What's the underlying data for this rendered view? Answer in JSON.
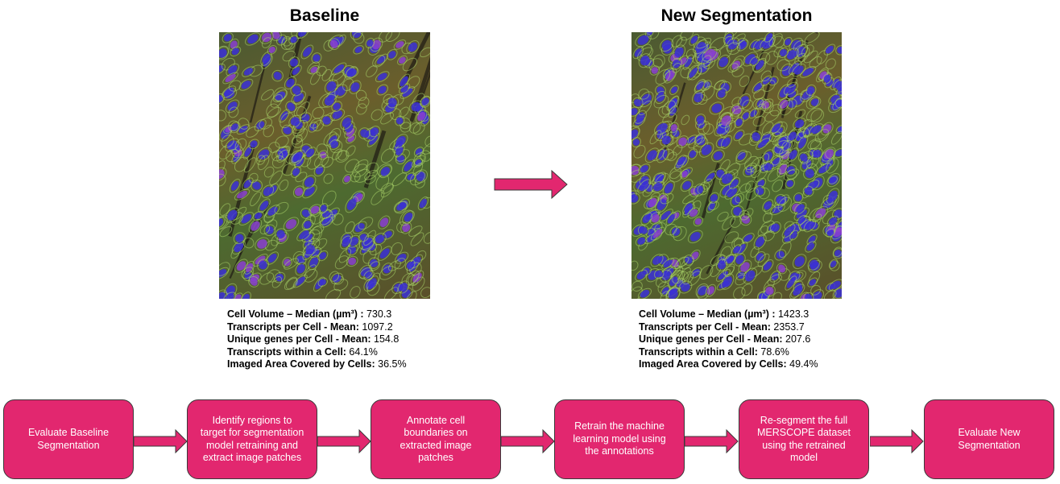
{
  "panels": {
    "baseline": {
      "title": "Baseline",
      "image_icon": "microscopy-image",
      "metrics": [
        {
          "label": "Cell Volume – Median (µm³) :",
          "value": "730.3"
        },
        {
          "label": "Transcripts per Cell - Mean:",
          "value": "1097.2"
        },
        {
          "label": "Unique genes per Cell - Mean:",
          "value": "154.8"
        },
        {
          "label": "Transcripts within a Cell:",
          "value": "64.1%"
        },
        {
          "label": "Imaged Area Covered by Cells:",
          "value": "36.5%"
        }
      ]
    },
    "new": {
      "title": "New Segmentation",
      "image_icon": "microscopy-image",
      "metrics": [
        {
          "label": "Cell Volume – Median (µm³) :",
          "value": "1423.3"
        },
        {
          "label": "Transcripts per Cell - Mean:",
          "value": "2353.7"
        },
        {
          "label": "Unique genes per Cell - Mean:",
          "value": "207.6"
        },
        {
          "label": "Transcripts within a Cell:",
          "value": "78.6%"
        },
        {
          "label": "Imaged Area Covered by Cells:",
          "value": "49.4%"
        }
      ]
    }
  },
  "workflow": {
    "steps": [
      "Evaluate Baseline Segmentation",
      "Identify regions to target for segmentation model retraining and extract image patches",
      "Annotate cell boundaries on extracted image patches",
      "Retrain the machine learning model using the annotations",
      "Re-segment the full MERSCOPE dataset using the retrained model",
      "Evaluate New Segmentation"
    ]
  },
  "colors": {
    "accent": "#e2276f",
    "nucleus": "#3b30d6",
    "membrane": "#a9d36a"
  }
}
